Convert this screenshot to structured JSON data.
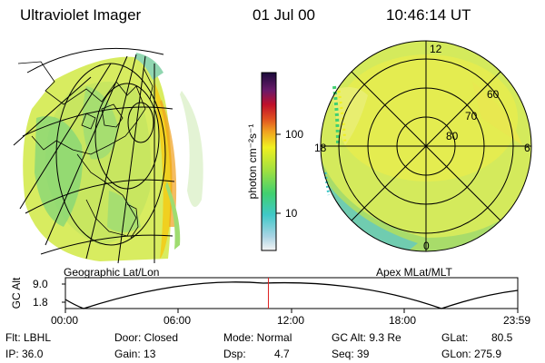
{
  "header": {
    "instrument": "Ultraviolet Imager",
    "date": "01 Jul 00",
    "time": "10:46:14 UT"
  },
  "left_panel": {
    "caption": "Geographic Lat/Lon"
  },
  "right_panel": {
    "caption": "Apex MLat/MLT",
    "mlt_labels": [
      "12",
      "18",
      "6",
      "0"
    ],
    "mlat_labels": [
      "60",
      "70",
      "80"
    ]
  },
  "colorbar": {
    "unit_label": "photon cm⁻²s⁻¹",
    "ticks": [
      "100",
      "10"
    ],
    "scale": "log",
    "colors": [
      "#1a0a3a",
      "#6a1a6a",
      "#c0102a",
      "#f08020",
      "#f0f020",
      "#a0e040",
      "#40d070",
      "#40c8c8",
      "#a0d0e0",
      "#f0f0f0"
    ]
  },
  "orbit_plot": {
    "y_axis_label": "GC Alt",
    "y_ticks": [
      "9.0",
      "1.8"
    ],
    "x_ticks": [
      "00:00",
      "06:00",
      "12:00",
      "18:00",
      "23:59"
    ],
    "marker_time_hours": 10.77,
    "marker_color": "#e02020"
  },
  "status": {
    "flt": "Flt: LBHL",
    "ip": "IP: 36.0",
    "door": "Door: Closed",
    "gain": "Gain: 13",
    "mode": "Mode: Normal",
    "dsp_label": "Dsp:",
    "dsp_value": "4.7",
    "gc_alt": "GC Alt: 9.3 Re",
    "seq": "Seq: 39",
    "glat_label": "GLat:",
    "glat_value": "80.5",
    "glon": "GLon: 275.9"
  }
}
